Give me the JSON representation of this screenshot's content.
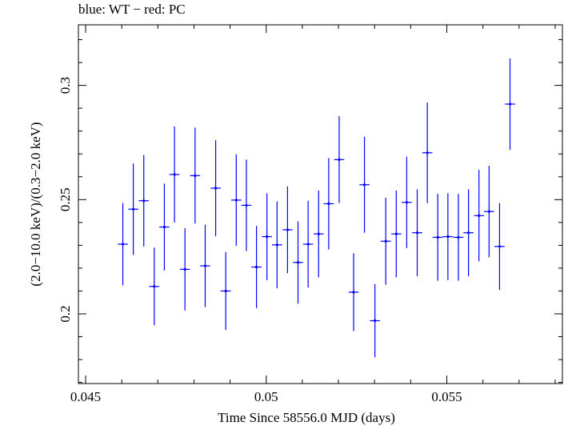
{
  "chart_data": {
    "type": "scatter",
    "title": "blue: WT − red: PC",
    "xlabel": "Time Since 58556.0 MJD (days)",
    "ylabel": "(2.0−10.0 keV)/(0.3−2.0 keV)",
    "xlim": [
      0.0448,
      0.0582
    ],
    "ylim": [
      0.1695,
      0.3265
    ],
    "xticks": [
      0.045,
      0.05,
      0.055
    ],
    "xtick_labels": [
      "0.045",
      "0.05",
      "0.055"
    ],
    "yticks": [
      0.2,
      0.25,
      0.3
    ],
    "ytick_labels": [
      "0.2",
      "0.25",
      "0.3"
    ],
    "grid": false,
    "series": [
      {
        "color": "#0000ff",
        "marker": "errorbar-cross",
        "points": [
          {
            "x": 0.04603,
            "xerr": 0.00014,
            "y": 0.2305,
            "yerr": 0.018
          },
          {
            "x": 0.04632,
            "xerr": 0.00014,
            "y": 0.2458,
            "yerr": 0.02
          },
          {
            "x": 0.04661,
            "xerr": 0.00014,
            "y": 0.2495,
            "yerr": 0.02
          },
          {
            "x": 0.0469,
            "xerr": 0.00014,
            "y": 0.212,
            "yerr": 0.017
          },
          {
            "x": 0.04718,
            "xerr": 0.00014,
            "y": 0.238,
            "yerr": 0.019
          },
          {
            "x": 0.04746,
            "xerr": 0.00014,
            "y": 0.261,
            "yerr": 0.021
          },
          {
            "x": 0.04775,
            "xerr": 0.00014,
            "y": 0.2195,
            "yerr": 0.018
          },
          {
            "x": 0.04803,
            "xerr": 0.00014,
            "y": 0.2605,
            "yerr": 0.021
          },
          {
            "x": 0.04831,
            "xerr": 0.00014,
            "y": 0.221,
            "yerr": 0.018
          },
          {
            "x": 0.0486,
            "xerr": 0.00014,
            "y": 0.255,
            "yerr": 0.021
          },
          {
            "x": 0.04888,
            "xerr": 0.00014,
            "y": 0.21,
            "yerr": 0.017
          },
          {
            "x": 0.04917,
            "xerr": 0.00014,
            "y": 0.2498,
            "yerr": 0.02
          },
          {
            "x": 0.04945,
            "xerr": 0.00014,
            "y": 0.2475,
            "yerr": 0.02
          },
          {
            "x": 0.04973,
            "xerr": 0.00014,
            "y": 0.2205,
            "yerr": 0.018
          },
          {
            "x": 0.05002,
            "xerr": 0.00014,
            "y": 0.2338,
            "yerr": 0.019
          },
          {
            "x": 0.0503,
            "xerr": 0.00014,
            "y": 0.2302,
            "yerr": 0.019
          },
          {
            "x": 0.05059,
            "xerr": 0.00014,
            "y": 0.2368,
            "yerr": 0.019
          },
          {
            "x": 0.05088,
            "xerr": 0.00014,
            "y": 0.2225,
            "yerr": 0.018
          },
          {
            "x": 0.05116,
            "xerr": 0.00014,
            "y": 0.2305,
            "yerr": 0.019
          },
          {
            "x": 0.05145,
            "xerr": 0.00014,
            "y": 0.235,
            "yerr": 0.019
          },
          {
            "x": 0.05173,
            "xerr": 0.00014,
            "y": 0.2482,
            "yerr": 0.02
          },
          {
            "x": 0.05202,
            "xerr": 0.00014,
            "y": 0.2675,
            "yerr": 0.019
          },
          {
            "x": 0.05242,
            "xerr": 0.00014,
            "y": 0.2095,
            "yerr": 0.017
          },
          {
            "x": 0.05272,
            "xerr": 0.00014,
            "y": 0.2565,
            "yerr": 0.021
          },
          {
            "x": 0.05301,
            "xerr": 0.00014,
            "y": 0.197,
            "yerr": 0.016
          },
          {
            "x": 0.05331,
            "xerr": 0.00014,
            "y": 0.2318,
            "yerr": 0.019
          },
          {
            "x": 0.0536,
            "xerr": 0.00014,
            "y": 0.235,
            "yerr": 0.019
          },
          {
            "x": 0.05389,
            "xerr": 0.00014,
            "y": 0.2488,
            "yerr": 0.02
          },
          {
            "x": 0.05418,
            "xerr": 0.00014,
            "y": 0.2355,
            "yerr": 0.019
          },
          {
            "x": 0.05446,
            "xerr": 0.00014,
            "y": 0.2705,
            "yerr": 0.022
          },
          {
            "x": 0.05475,
            "xerr": 0.00014,
            "y": 0.2335,
            "yerr": 0.019
          },
          {
            "x": 0.05503,
            "xerr": 0.00014,
            "y": 0.2338,
            "yerr": 0.019
          },
          {
            "x": 0.05532,
            "xerr": 0.00014,
            "y": 0.2335,
            "yerr": 0.019
          },
          {
            "x": 0.0556,
            "xerr": 0.00014,
            "y": 0.2355,
            "yerr": 0.019
          },
          {
            "x": 0.05589,
            "xerr": 0.00014,
            "y": 0.243,
            "yerr": 0.02
          },
          {
            "x": 0.05617,
            "xerr": 0.00014,
            "y": 0.2448,
            "yerr": 0.02
          },
          {
            "x": 0.05646,
            "xerr": 0.00014,
            "y": 0.2295,
            "yerr": 0.019
          },
          {
            "x": 0.05675,
            "xerr": 0.00014,
            "y": 0.2918,
            "yerr": 0.02
          }
        ]
      }
    ]
  }
}
